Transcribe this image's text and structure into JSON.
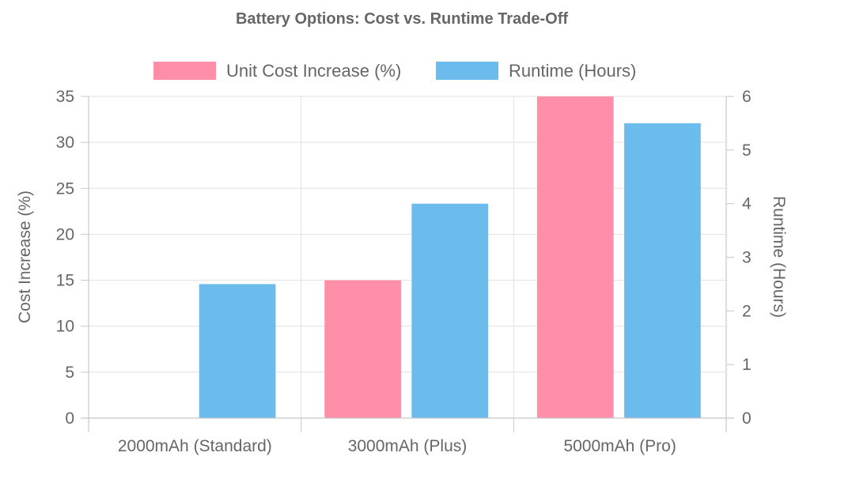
{
  "chart_data": {
    "type": "bar",
    "title": "Battery Options: Cost vs. Runtime Trade-Off",
    "categories": [
      "2000mAh (Standard)",
      "3000mAh (Plus)",
      "5000mAh (Pro)"
    ],
    "series": [
      {
        "name": "Unit Cost Increase (%)",
        "axis": "left",
        "color": "#ff8fa8",
        "values": [
          0,
          15,
          35
        ]
      },
      {
        "name": "Runtime (Hours)",
        "axis": "right",
        "color": "#6bbbec",
        "values": [
          2.5,
          4,
          5.5
        ]
      }
    ],
    "y_left": {
      "label": "Cost Increase (%)",
      "range": [
        0,
        35
      ],
      "ticks": [
        "0",
        "5",
        "10",
        "15",
        "20",
        "25",
        "30",
        "35"
      ]
    },
    "y_right": {
      "label": "Runtime (Hours)",
      "range": [
        0,
        6
      ],
      "ticks": [
        "0",
        "1",
        "2",
        "3",
        "4",
        "5",
        "6"
      ]
    },
    "grid": true,
    "legend_position": "top-center"
  }
}
